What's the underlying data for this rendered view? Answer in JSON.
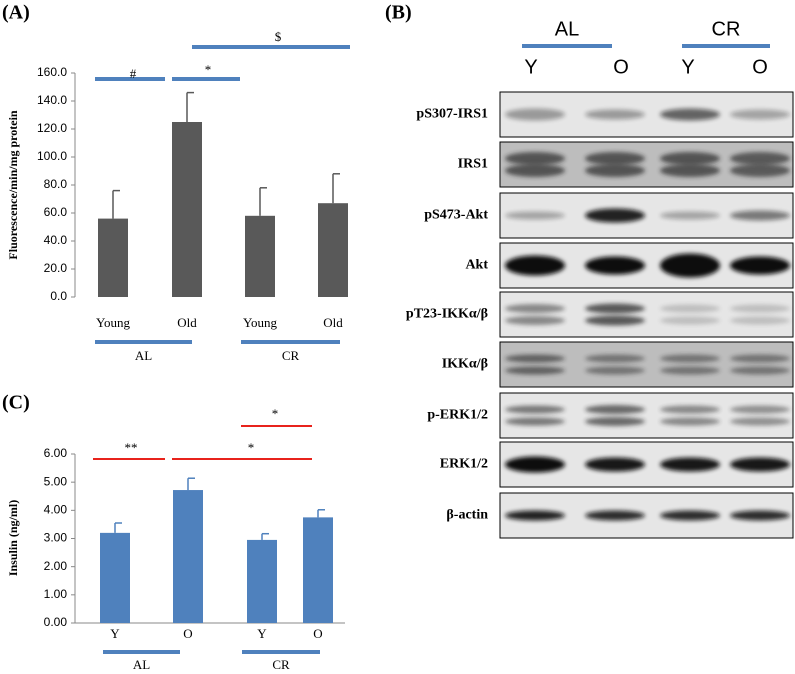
{
  "chart_data": [
    {
      "type": "bar",
      "panel_label": "(A)",
      "y_label": "Fluorescence/min/mg protein",
      "categories": [
        "Young",
        "Old",
        "Young",
        "Old"
      ],
      "values": [
        56,
        125,
        58,
        67
      ],
      "errors": [
        20,
        21,
        20,
        21
      ],
      "color": "#595959",
      "ylim": [
        0,
        160
      ],
      "yticks": [
        {
          "value": 0,
          "label": "0.0"
        },
        {
          "value": 20,
          "label": "20.0"
        },
        {
          "value": 40,
          "label": "40.0"
        },
        {
          "value": 60,
          "label": "60.0"
        },
        {
          "value": 80,
          "label": "80.0"
        },
        {
          "value": 100,
          "label": "100.0"
        },
        {
          "value": 120,
          "label": "120.0"
        },
        {
          "value": 140,
          "label": "140.0"
        },
        {
          "value": 160,
          "label": "160.0"
        }
      ],
      "groups": [
        "AL",
        "CR"
      ],
      "annotations": [
        "#",
        "*",
        "$"
      ]
    },
    {
      "type": "bar",
      "panel_label": "(C)",
      "y_label": "Insulin (ng/ml)",
      "categories": [
        "Y",
        "O",
        "Y",
        "O"
      ],
      "values": [
        3.2,
        4.72,
        2.95,
        3.75
      ],
      "errors": [
        0.35,
        0.42,
        0.22,
        0.27
      ],
      "color": "#4f81bd",
      "ylim": [
        0,
        6
      ],
      "yticks": [
        {
          "value": 0,
          "label": "0.00"
        },
        {
          "value": 1,
          "label": "1.00"
        },
        {
          "value": 2,
          "label": "2.00"
        },
        {
          "value": 3,
          "label": "3.00"
        },
        {
          "value": 4,
          "label": "4.00"
        },
        {
          "value": 5,
          "label": "5.00"
        },
        {
          "value": 6,
          "label": "6.00"
        }
      ],
      "groups": [
        "AL",
        "CR"
      ],
      "annotations": [
        "**",
        "*",
        "*"
      ]
    }
  ],
  "panel_b": {
    "label": "(B)",
    "groups": [
      "AL",
      "CR"
    ],
    "lanes": [
      "Y",
      "O",
      "Y",
      "O"
    ],
    "rows": [
      "pS307-IRS1",
      "IRS1",
      "pS473-Akt",
      "Akt",
      "pT23-IKKα/β",
      "IKKα/β",
      "p-ERK1/2",
      "ERK1/2",
      "β-actin"
    ]
  }
}
